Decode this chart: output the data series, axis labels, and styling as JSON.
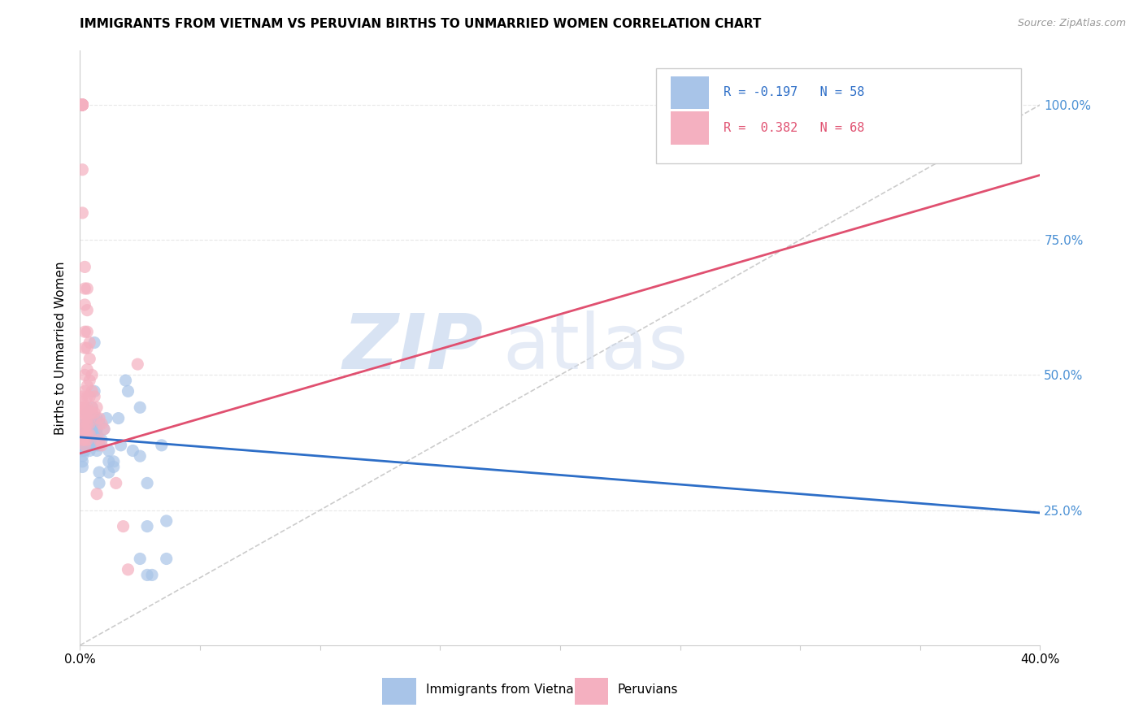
{
  "title": "IMMIGRANTS FROM VIETNAM VS PERUVIAN BIRTHS TO UNMARRIED WOMEN CORRELATION CHART",
  "source": "Source: ZipAtlas.com",
  "ylabel": "Births to Unmarried Women",
  "legend_blue_label": "Immigrants from Vietnam",
  "legend_pink_label": "Peruvians",
  "blue_scatter": [
    [
      0.001,
      0.38
    ],
    [
      0.001,
      0.36
    ],
    [
      0.001,
      0.34
    ],
    [
      0.001,
      0.33
    ],
    [
      0.001,
      0.35
    ],
    [
      0.001,
      0.4
    ],
    [
      0.001,
      0.37
    ],
    [
      0.001,
      0.36
    ],
    [
      0.002,
      0.39
    ],
    [
      0.002,
      0.38
    ],
    [
      0.002,
      0.37
    ],
    [
      0.002,
      0.36
    ],
    [
      0.002,
      0.4
    ],
    [
      0.002,
      0.41
    ],
    [
      0.003,
      0.38
    ],
    [
      0.003,
      0.4
    ],
    [
      0.003,
      0.41
    ],
    [
      0.003,
      0.43
    ],
    [
      0.003,
      0.37
    ],
    [
      0.003,
      0.39
    ],
    [
      0.004,
      0.42
    ],
    [
      0.004,
      0.4
    ],
    [
      0.004,
      0.39
    ],
    [
      0.004,
      0.38
    ],
    [
      0.004,
      0.36
    ],
    [
      0.005,
      0.44
    ],
    [
      0.005,
      0.41
    ],
    [
      0.005,
      0.4
    ],
    [
      0.005,
      0.38
    ],
    [
      0.005,
      0.43
    ],
    [
      0.006,
      0.56
    ],
    [
      0.006,
      0.47
    ],
    [
      0.006,
      0.42
    ],
    [
      0.006,
      0.39
    ],
    [
      0.006,
      0.38
    ],
    [
      0.007,
      0.42
    ],
    [
      0.007,
      0.4
    ],
    [
      0.007,
      0.39
    ],
    [
      0.007,
      0.37
    ],
    [
      0.007,
      0.36
    ],
    [
      0.008,
      0.41
    ],
    [
      0.008,
      0.37
    ],
    [
      0.008,
      0.32
    ],
    [
      0.008,
      0.3
    ],
    [
      0.009,
      0.38
    ],
    [
      0.01,
      0.4
    ],
    [
      0.011,
      0.42
    ],
    [
      0.012,
      0.36
    ],
    [
      0.012,
      0.34
    ],
    [
      0.012,
      0.32
    ],
    [
      0.014,
      0.34
    ],
    [
      0.014,
      0.33
    ],
    [
      0.016,
      0.42
    ],
    [
      0.017,
      0.37
    ],
    [
      0.019,
      0.49
    ],
    [
      0.02,
      0.47
    ],
    [
      0.022,
      0.36
    ],
    [
      0.025,
      0.35
    ],
    [
      0.028,
      0.3
    ],
    [
      0.034,
      0.37
    ],
    [
      0.028,
      0.22
    ],
    [
      0.036,
      0.23
    ],
    [
      0.025,
      0.16
    ],
    [
      0.036,
      0.16
    ],
    [
      0.025,
      0.44
    ],
    [
      0.028,
      0.13
    ],
    [
      0.03,
      0.13
    ]
  ],
  "pink_scatter": [
    [
      0.001,
      1.0
    ],
    [
      0.001,
      1.0
    ],
    [
      0.001,
      1.0
    ],
    [
      0.001,
      1.0
    ],
    [
      0.001,
      1.0
    ],
    [
      0.001,
      1.0
    ],
    [
      0.001,
      1.0
    ],
    [
      0.001,
      1.0
    ],
    [
      0.001,
      1.0
    ],
    [
      0.001,
      0.88
    ],
    [
      0.001,
      0.8
    ],
    [
      0.001,
      0.42
    ],
    [
      0.001,
      0.4
    ],
    [
      0.001,
      0.38
    ],
    [
      0.001,
      0.45
    ],
    [
      0.001,
      0.43
    ],
    [
      0.001,
      0.44
    ],
    [
      0.001,
      0.46
    ],
    [
      0.002,
      0.7
    ],
    [
      0.002,
      0.66
    ],
    [
      0.002,
      0.63
    ],
    [
      0.002,
      0.58
    ],
    [
      0.002,
      0.55
    ],
    [
      0.002,
      0.5
    ],
    [
      0.002,
      0.47
    ],
    [
      0.002,
      0.44
    ],
    [
      0.002,
      0.43
    ],
    [
      0.002,
      0.41
    ],
    [
      0.002,
      0.4
    ],
    [
      0.002,
      0.39
    ],
    [
      0.002,
      0.38
    ],
    [
      0.002,
      0.37
    ],
    [
      0.003,
      0.66
    ],
    [
      0.003,
      0.62
    ],
    [
      0.003,
      0.58
    ],
    [
      0.003,
      0.55
    ],
    [
      0.003,
      0.51
    ],
    [
      0.003,
      0.48
    ],
    [
      0.003,
      0.46
    ],
    [
      0.003,
      0.44
    ],
    [
      0.003,
      0.42
    ],
    [
      0.003,
      0.41
    ],
    [
      0.003,
      0.39
    ],
    [
      0.003,
      0.38
    ],
    [
      0.004,
      0.56
    ],
    [
      0.004,
      0.53
    ],
    [
      0.004,
      0.49
    ],
    [
      0.004,
      0.46
    ],
    [
      0.004,
      0.43
    ],
    [
      0.004,
      0.41
    ],
    [
      0.004,
      0.39
    ],
    [
      0.005,
      0.5
    ],
    [
      0.005,
      0.47
    ],
    [
      0.005,
      0.44
    ],
    [
      0.005,
      0.43
    ],
    [
      0.006,
      0.46
    ],
    [
      0.006,
      0.43
    ],
    [
      0.007,
      0.44
    ],
    [
      0.007,
      0.28
    ],
    [
      0.008,
      0.42
    ],
    [
      0.008,
      0.38
    ],
    [
      0.009,
      0.41
    ],
    [
      0.009,
      0.37
    ],
    [
      0.01,
      0.4
    ],
    [
      0.024,
      0.52
    ],
    [
      0.015,
      0.3
    ],
    [
      0.018,
      0.22
    ],
    [
      0.02,
      0.14
    ]
  ],
  "blue_line_x": [
    0.0,
    0.4
  ],
  "blue_line_y": [
    0.385,
    0.245
  ],
  "pink_line_x": [
    0.0,
    0.4
  ],
  "pink_line_y": [
    0.355,
    0.87
  ],
  "diag_line_x": [
    0.0,
    0.4
  ],
  "diag_line_y": [
    0.0,
    1.0
  ],
  "watermark_zip": "ZIP",
  "watermark_atlas": "atlas",
  "blue_color": "#a8c4e8",
  "pink_color": "#f4b0c0",
  "blue_line_color": "#2d6ec7",
  "pink_line_color": "#e05070",
  "diag_line_color": "#cccccc",
  "right_axis_color": "#4a90d4",
  "grid_color": "#e8e8e8",
  "xlim": [
    0.0,
    0.4
  ],
  "ylim": [
    0.0,
    1.1
  ],
  "yticks": [
    0.25,
    0.5,
    0.75,
    1.0
  ],
  "ytick_labels": [
    "25.0%",
    "50.0%",
    "75.0%",
    "100.0%"
  ],
  "xticks": [
    0.0,
    0.05,
    0.1,
    0.15,
    0.2,
    0.25,
    0.3,
    0.35,
    0.4
  ],
  "xtick_labels_show": [
    "0.0%",
    "",
    "",
    "",
    "",
    "",
    "",
    "",
    "40.0%"
  ]
}
